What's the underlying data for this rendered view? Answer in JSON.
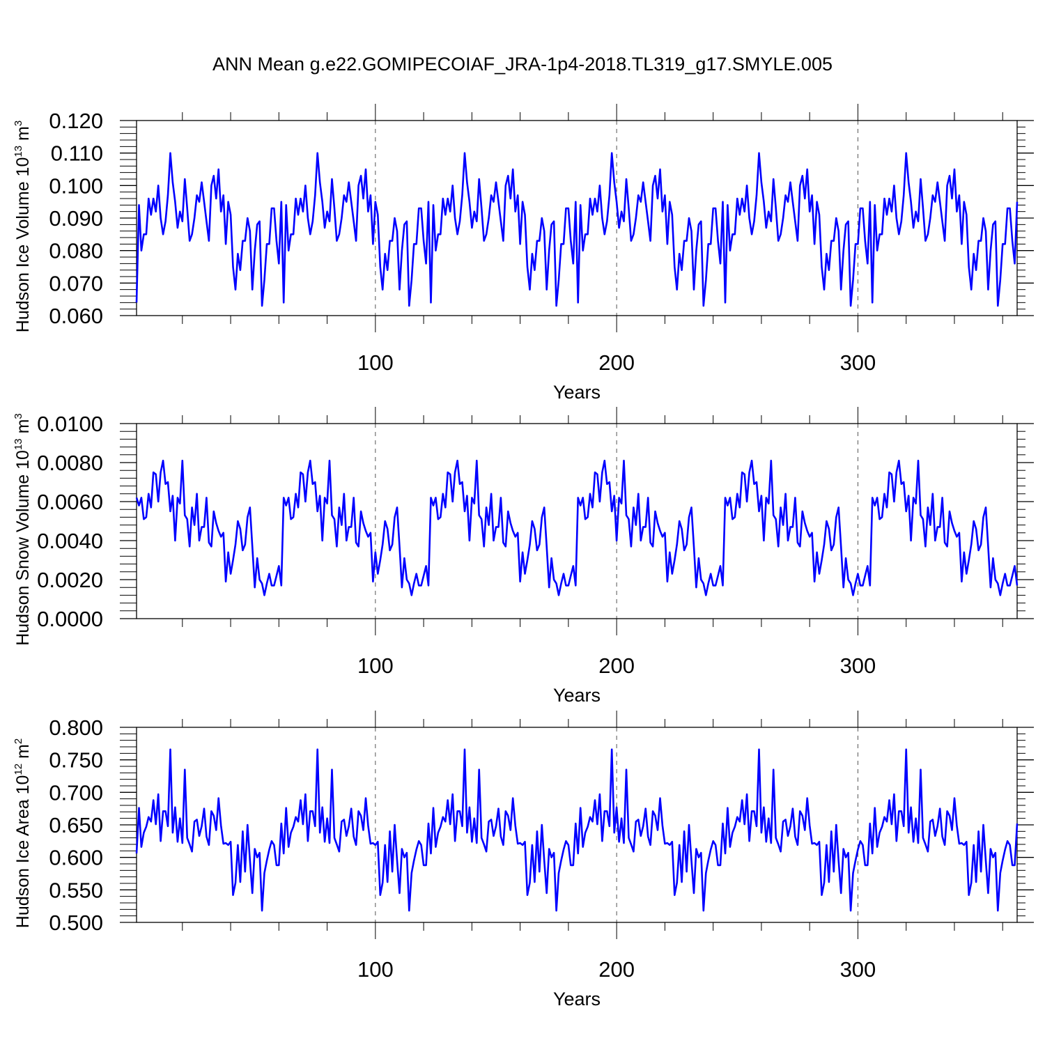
{
  "title": "ANN Mean g.e22.GOMIPECOIAF_JRA-1p4-2018.TL319_g17.SMYLE.005",
  "chart_data": [
    {
      "type": "line",
      "series_name": "Hudson Ice Volume",
      "ylabel": {
        "text": "Hudson Ice Volume 10",
        "exponent": "13",
        "unit": " m",
        "unit_exponent": "3"
      },
      "xlabel": "Years",
      "xlim": [
        1,
        366
      ],
      "ylim": [
        0.06,
        0.12
      ],
      "yticks": [
        "0.060",
        "0.070",
        "0.080",
        "0.090",
        "0.100",
        "0.110",
        "0.120"
      ],
      "ytick_values": [
        0.06,
        0.07,
        0.08,
        0.09,
        0.1,
        0.11,
        0.12
      ],
      "xticks": [
        "100",
        "200",
        "300"
      ],
      "xtick_values": [
        100,
        200,
        300
      ],
      "color": "#0000ff",
      "period": 61,
      "cycle": [
        0.064,
        0.094,
        0.08,
        0.085,
        0.085,
        0.096,
        0.091,
        0.096,
        0.092,
        0.1,
        0.09,
        0.085,
        0.089,
        0.097,
        0.11,
        0.101,
        0.095,
        0.087,
        0.092,
        0.089,
        0.102,
        0.093,
        0.083,
        0.085,
        0.09,
        0.097,
        0.095,
        0.101,
        0.095,
        0.089,
        0.083,
        0.1,
        0.103,
        0.096,
        0.105,
        0.092,
        0.097,
        0.082,
        0.095,
        0.091,
        0.075,
        0.068,
        0.079,
        0.074,
        0.083,
        0.083,
        0.09,
        0.086,
        0.068,
        0.08,
        0.088,
        0.089,
        0.063,
        0.071,
        0.082,
        0.082,
        0.093,
        0.093,
        0.083,
        0.076,
        0.095
      ],
      "values_note": "sequence repeats cyclically over xlim"
    },
    {
      "type": "line",
      "series_name": "Hudson Snow Volume",
      "ylabel": {
        "text": "Hudson Snow Volume 10",
        "exponent": "13",
        "unit": " m",
        "unit_exponent": "3"
      },
      "xlabel": "Years",
      "xlim": [
        1,
        366
      ],
      "ylim": [
        0.0,
        0.01
      ],
      "yticks": [
        "0.0000",
        "0.0020",
        "0.0040",
        "0.0060",
        "0.0080",
        "0.0100"
      ],
      "ytick_values": [
        0.0,
        0.002,
        0.004,
        0.006,
        0.008,
        0.01
      ],
      "xticks": [
        "100",
        "200",
        "300"
      ],
      "xtick_values": [
        100,
        200,
        300
      ],
      "color": "#0000ff",
      "period": 61,
      "cycle": [
        0.0062,
        0.0058,
        0.0062,
        0.0051,
        0.0052,
        0.0064,
        0.0057,
        0.0075,
        0.0074,
        0.006,
        0.0075,
        0.0081,
        0.0069,
        0.007,
        0.0055,
        0.0063,
        0.004,
        0.0062,
        0.0059,
        0.0081,
        0.0053,
        0.0051,
        0.0037,
        0.0057,
        0.0048,
        0.0064,
        0.004,
        0.0047,
        0.0047,
        0.0062,
        0.0039,
        0.0037,
        0.0055,
        0.0049,
        0.0045,
        0.0042,
        0.0044,
        0.0019,
        0.0034,
        0.0023,
        0.003,
        0.0038,
        0.005,
        0.0046,
        0.0035,
        0.0038,
        0.0052,
        0.0057,
        0.0037,
        0.0016,
        0.0031,
        0.002,
        0.0018,
        0.0012,
        0.0018,
        0.0023,
        0.0017,
        0.0017,
        0.0022,
        0.0027,
        0.0017
      ],
      "values_note": "sequence repeats cyclically over xlim"
    },
    {
      "type": "line",
      "series_name": "Hudson Ice Area",
      "ylabel": {
        "text": "Hudson Ice Area 10",
        "exponent": "12",
        "unit": " m",
        "unit_exponent": "2"
      },
      "xlabel": "Years",
      "xlim": [
        1,
        366
      ],
      "ylim": [
        0.5,
        0.8
      ],
      "yticks": [
        "0.500",
        "0.550",
        "0.600",
        "0.650",
        "0.700",
        "0.750",
        "0.800"
      ],
      "ytick_values": [
        0.5,
        0.55,
        0.6,
        0.65,
        0.7,
        0.75,
        0.8
      ],
      "xticks": [
        "100",
        "200",
        "300"
      ],
      "xtick_values": [
        100,
        200,
        300
      ],
      "color": "#0000ff",
      "period": 61,
      "cycle": [
        0.606,
        0.676,
        0.616,
        0.638,
        0.647,
        0.662,
        0.655,
        0.688,
        0.651,
        0.697,
        0.625,
        0.671,
        0.671,
        0.648,
        0.766,
        0.638,
        0.677,
        0.624,
        0.66,
        0.622,
        0.735,
        0.63,
        0.62,
        0.609,
        0.655,
        0.658,
        0.633,
        0.648,
        0.675,
        0.632,
        0.619,
        0.671,
        0.664,
        0.642,
        0.691,
        0.649,
        0.621,
        0.622,
        0.619,
        0.624,
        0.542,
        0.561,
        0.619,
        0.562,
        0.64,
        0.578,
        0.65,
        0.595,
        0.545,
        0.613,
        0.6,
        0.607,
        0.518,
        0.576,
        0.595,
        0.612,
        0.625,
        0.619,
        0.588,
        0.588,
        0.652
      ],
      "values_note": "sequence repeats cyclically over xlim"
    }
  ]
}
